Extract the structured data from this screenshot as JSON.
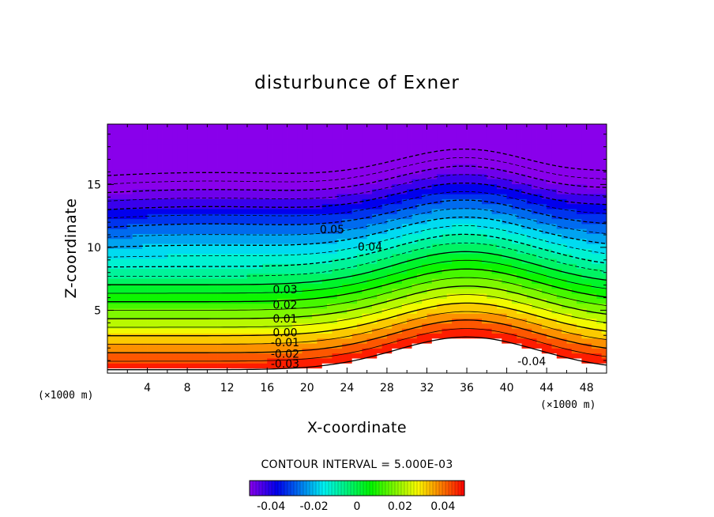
{
  "chart_data": {
    "type": "contour",
    "title": "disturbunce of Exner",
    "xlabel": "X-coordinate",
    "ylabel": "Z-coordinate",
    "x_unit": "(×1000 m)",
    "y_unit": "(×1000 m)",
    "xlim": [
      0,
      50
    ],
    "ylim": [
      0,
      19.8
    ],
    "x_ticks": [
      4,
      8,
      12,
      16,
      20,
      24,
      28,
      32,
      36,
      40,
      44,
      48
    ],
    "y_ticks": [
      5,
      10,
      15
    ],
    "contour_interval_label": "CONTOUR INTERVAL = 5.000E-03",
    "contour_interval": 0.005,
    "contour_labels": [
      {
        "text": "0.05",
        "x": 22.5,
        "z": 11.2
      },
      {
        "text": "0.04",
        "x": 26.3,
        "z": 9.8
      },
      {
        "text": "0.03",
        "x": 17.8,
        "z": 6.4
      },
      {
        "text": "0.02",
        "x": 17.8,
        "z": 5.2
      },
      {
        "text": "0.01",
        "x": 17.8,
        "z": 4.1
      },
      {
        "text": "0.00",
        "x": 17.8,
        "z": 3.0
      },
      {
        "text": "-0.01",
        "x": 17.8,
        "z": 2.2
      },
      {
        "text": "-0.02",
        "x": 17.8,
        "z": 1.3
      },
      {
        "text": "-0.03",
        "x": 17.8,
        "z": 0.5
      },
      {
        "text": "-0.04",
        "x": 42.5,
        "z": 0.7
      }
    ],
    "colorbar": {
      "range": [
        -0.05,
        0.05
      ],
      "tick_values": [
        -0.04,
        -0.02,
        0,
        0.02,
        0.04
      ],
      "tick_labels": [
        "-0.04",
        "-0.02",
        "0",
        "0.02",
        "0.04"
      ]
    },
    "grid": false,
    "legend": "colorbar-bottom"
  }
}
